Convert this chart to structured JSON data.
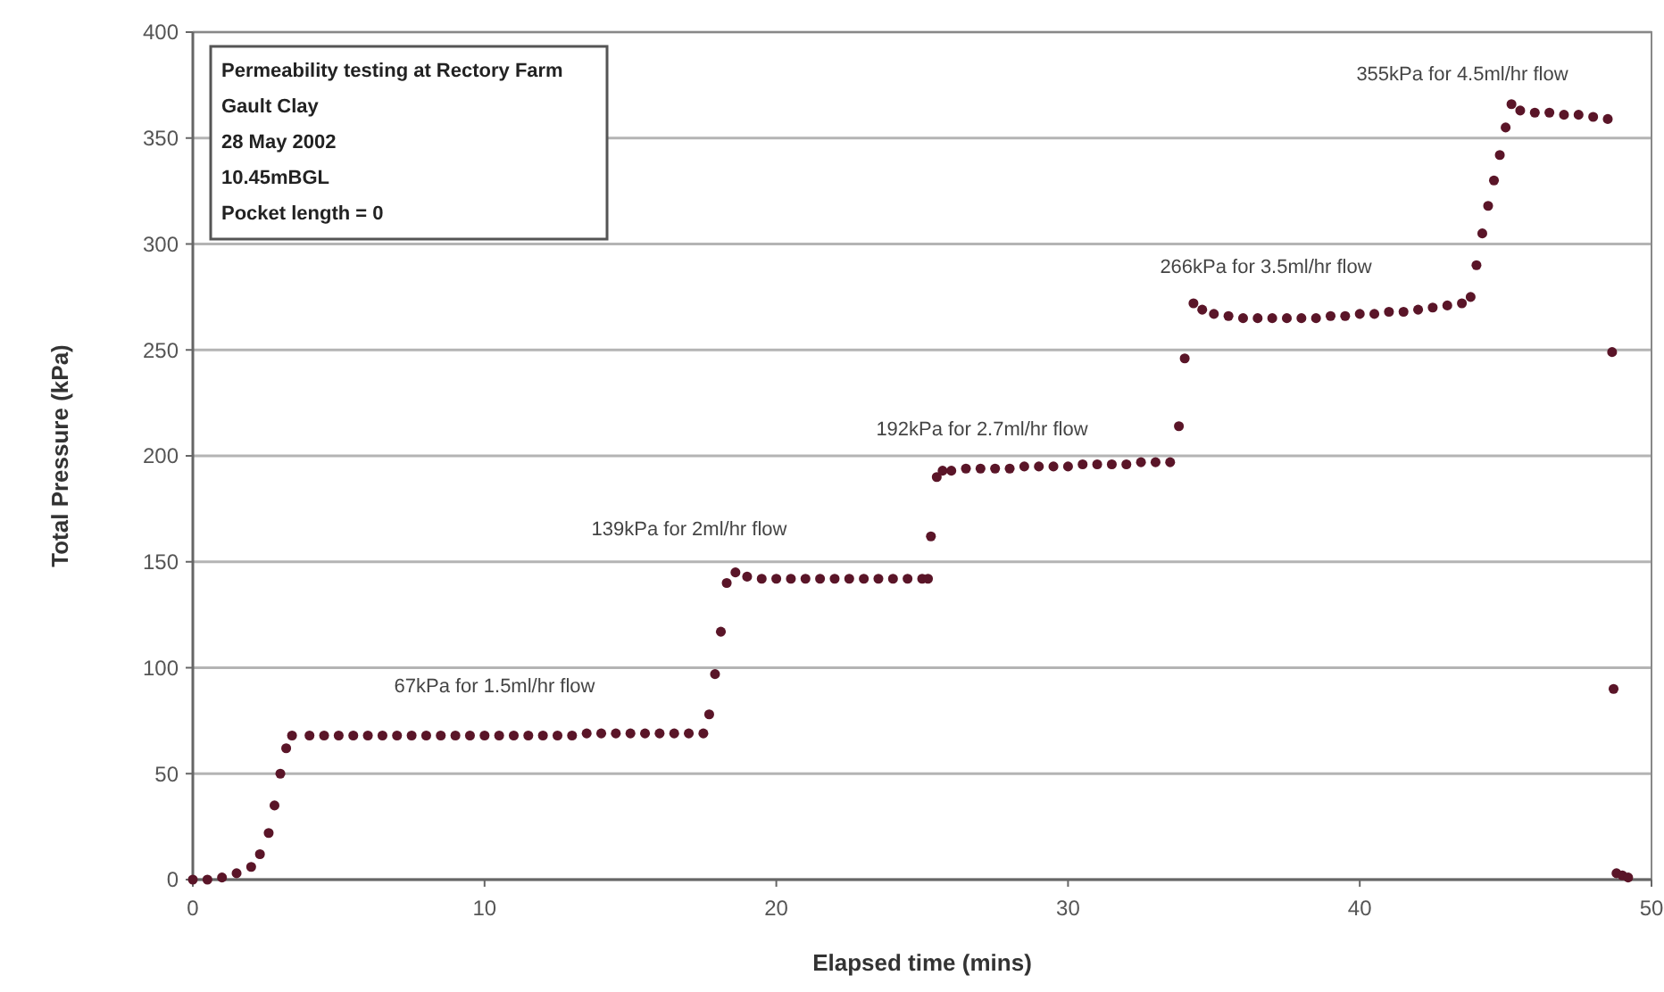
{
  "chart_data": {
    "type": "scatter",
    "xlabel": "Elapsed time (mins)",
    "ylabel": "Total Pressure (kPa)",
    "xlim": [
      0,
      50
    ],
    "xticks": [
      0,
      10,
      20,
      30,
      40,
      50
    ],
    "ylim": [
      0,
      400
    ],
    "yticks": [
      0,
      50,
      100,
      150,
      200,
      250,
      300,
      350,
      400
    ],
    "grid": "y",
    "marker": "circle",
    "series": [
      {
        "color": "#5a1528",
        "x": [
          0,
          0.5,
          1,
          1.5,
          2,
          2.3,
          2.6,
          2.8,
          3.0,
          3.2,
          3.4,
          4,
          4.5,
          5,
          5.5,
          6,
          6.5,
          7,
          7.5,
          8,
          8.5,
          9,
          9.5,
          10,
          10.5,
          11,
          11.5,
          12,
          12.5,
          13,
          13.5,
          14,
          14.5,
          15,
          15.5,
          16,
          16.5,
          17,
          17.5,
          17.7,
          17.9,
          18.1,
          18.3,
          18.6,
          19,
          19.5,
          20,
          20.5,
          21,
          21.5,
          22,
          22.5,
          23,
          23.5,
          24,
          24.5,
          25,
          25.2,
          25.3,
          25.5,
          25.7,
          26,
          26.5,
          27,
          27.5,
          28,
          28.5,
          29,
          29.5,
          30,
          30.5,
          31,
          31.5,
          32,
          32.5,
          33,
          33.5,
          33.8,
          34.0,
          34.3,
          34.6,
          35,
          35.5,
          36,
          36.5,
          37,
          37.5,
          38,
          38.5,
          39,
          39.5,
          40,
          40.5,
          41,
          41.5,
          42,
          42.5,
          43,
          43.5,
          43.8,
          44.0,
          44.2,
          44.4,
          44.6,
          44.8,
          45.0,
          45.2,
          45.5,
          46,
          46.5,
          47,
          47.5,
          48,
          48.5,
          48.65,
          48.7,
          48.8,
          49.0,
          49.2
        ],
        "values": [
          0,
          0,
          1,
          3,
          6,
          12,
          22,
          35,
          50,
          62,
          68,
          68,
          68,
          68,
          68,
          68,
          68,
          68,
          68,
          68,
          68,
          68,
          68,
          68,
          68,
          68,
          68,
          68,
          68,
          68,
          69,
          69,
          69,
          69,
          69,
          69,
          69,
          69,
          69,
          78,
          97,
          117,
          140,
          145,
          143,
          142,
          142,
          142,
          142,
          142,
          142,
          142,
          142,
          142,
          142,
          142,
          142,
          142,
          162,
          190,
          193,
          193,
          194,
          194,
          194,
          194,
          195,
          195,
          195,
          195,
          196,
          196,
          196,
          196,
          197,
          197,
          197,
          214,
          246,
          272,
          269,
          267,
          266,
          265,
          265,
          265,
          265,
          265,
          265,
          266,
          266,
          267,
          267,
          268,
          268,
          269,
          270,
          271,
          272,
          275,
          290,
          305,
          318,
          330,
          342,
          355,
          366,
          363,
          362,
          362,
          361,
          361,
          360,
          359,
          249,
          90,
          3,
          2,
          1
        ]
      }
    ],
    "annotations": [
      "Permeability testing at Rectory Farm",
      "Gault Clay",
      "28 May 2002",
      "10.45mBGL",
      "Pocket length = 0",
      "67kPa for 1.5ml/hr flow",
      "139kPa for 2ml/hr flow",
      "192kPa for 2.7ml/hr flow",
      "266kPa for 3.5ml/hr flow",
      "355kPa for 4.5ml/hr flow"
    ]
  }
}
